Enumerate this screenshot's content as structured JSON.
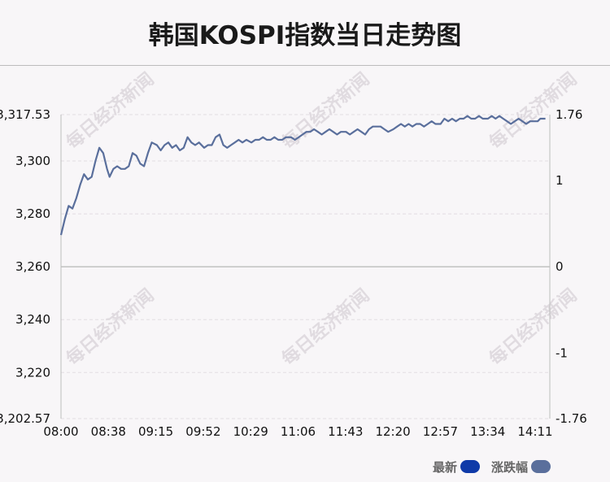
{
  "title": "韩国KOSPI指数当日走势图",
  "watermark": "每日经济新闻",
  "legend": [
    {
      "label": "最新",
      "color": "#0f3aa8"
    },
    {
      "label": "涨跌幅",
      "color": "#5a6f9c"
    }
  ],
  "chart_data": {
    "type": "line",
    "title": "韩国KOSPI指数当日走势图",
    "x_ticks": [
      "08:00",
      "08:38",
      "09:15",
      "09:52",
      "10:29",
      "11:06",
      "11:43",
      "12:20",
      "12:57",
      "13:34",
      "14:11"
    ],
    "y_left": {
      "min": 3202.57,
      "max": 3317.53,
      "ticks": [
        "3,317.53",
        "3,300",
        "3,280",
        "3,260",
        "3,240",
        "3,220",
        "3,202.57"
      ],
      "tick_values": [
        3317.53,
        3300,
        3280,
        3260,
        3240,
        3220,
        3202.57
      ]
    },
    "y_right": {
      "min": -1.76,
      "max": 1.76,
      "ticks": [
        "1.76",
        "1",
        "0",
        "-1",
        "-1.76"
      ],
      "tick_values": [
        1.76,
        1,
        0,
        -1,
        -1.76
      ]
    },
    "baseline": 3260,
    "grid": "dashed horizontal",
    "line_color": "#5a6f9c",
    "series": [
      {
        "x": [
          "08:00",
          "08:03",
          "08:06",
          "08:09",
          "08:12",
          "08:15",
          "08:18",
          "08:21",
          "08:24",
          "08:27",
          "08:30",
          "08:33",
          "08:36",
          "08:38",
          "08:41",
          "08:44",
          "08:47",
          "08:50",
          "08:53",
          "08:56",
          "08:59",
          "09:02",
          "09:05",
          "09:08",
          "09:11",
          "09:15",
          "09:18",
          "09:21",
          "09:24",
          "09:27",
          "09:30",
          "09:33",
          "09:36",
          "09:39",
          "09:42",
          "09:45",
          "09:48",
          "09:52",
          "09:55",
          "09:58",
          "10:01",
          "10:04",
          "10:07",
          "10:10",
          "10:13",
          "10:16",
          "10:19",
          "10:22",
          "10:25",
          "10:29",
          "10:32",
          "10:35",
          "10:38",
          "10:41",
          "10:44",
          "10:47",
          "10:50",
          "10:53",
          "10:56",
          "11:00",
          "11:03",
          "11:06",
          "11:09",
          "11:12",
          "11:15",
          "11:18",
          "11:21",
          "11:24",
          "11:27",
          "11:30",
          "11:33",
          "11:36",
          "11:39",
          "11:43",
          "11:46",
          "11:49",
          "11:52",
          "11:55",
          "11:58",
          "12:01",
          "12:04",
          "12:07",
          "12:10",
          "12:13",
          "12:16",
          "12:20",
          "12:23",
          "12:26",
          "12:29",
          "12:32",
          "12:35",
          "12:38",
          "12:41",
          "12:44",
          "12:47",
          "12:50",
          "12:53",
          "12:57",
          "13:00",
          "13:03",
          "13:06",
          "13:09",
          "13:12",
          "13:15",
          "13:18",
          "13:21",
          "13:24",
          "13:27",
          "13:30",
          "13:34",
          "13:37",
          "13:40",
          "13:43",
          "13:46",
          "13:49",
          "13:52",
          "13:55",
          "13:58",
          "14:01",
          "14:04",
          "14:07",
          "14:11",
          "14:13",
          "14:15",
          "14:17",
          "14:19"
        ],
        "values": [
          3272,
          3278,
          3283,
          3282,
          3286,
          3291,
          3295,
          3293,
          3294,
          3300,
          3305,
          3303,
          3297,
          3294,
          3297,
          3298,
          3297,
          3297,
          3298,
          3303,
          3302,
          3299,
          3298,
          3303,
          3307,
          3306,
          3304,
          3306,
          3307,
          3305,
          3306,
          3304,
          3305,
          3309,
          3307,
          3306,
          3307,
          3305,
          3306,
          3306,
          3309,
          3310,
          3306,
          3305,
          3306,
          3307,
          3308,
          3307,
          3308,
          3307,
          3308,
          3308,
          3309,
          3308,
          3308,
          3309,
          3308,
          3308,
          3309,
          3309,
          3308,
          3309,
          3310,
          3311,
          3311,
          3312,
          3311,
          3310,
          3311,
          3312,
          3311,
          3310,
          3311,
          3311,
          3310,
          3311,
          3312,
          3311,
          3310,
          3312,
          3313,
          3313,
          3313,
          3312,
          3311,
          3312,
          3313,
          3314,
          3313,
          3314,
          3313,
          3314,
          3314,
          3313,
          3314,
          3315,
          3314,
          3314,
          3316,
          3315,
          3316,
          3315,
          3316,
          3316,
          3317,
          3316,
          3316,
          3317,
          3316,
          3316,
          3317,
          3316,
          3317,
          3316,
          3315,
          3314,
          3315,
          3316,
          3315,
          3314,
          3315,
          3315,
          3315,
          3316,
          3316,
          3316
        ]
      }
    ]
  }
}
